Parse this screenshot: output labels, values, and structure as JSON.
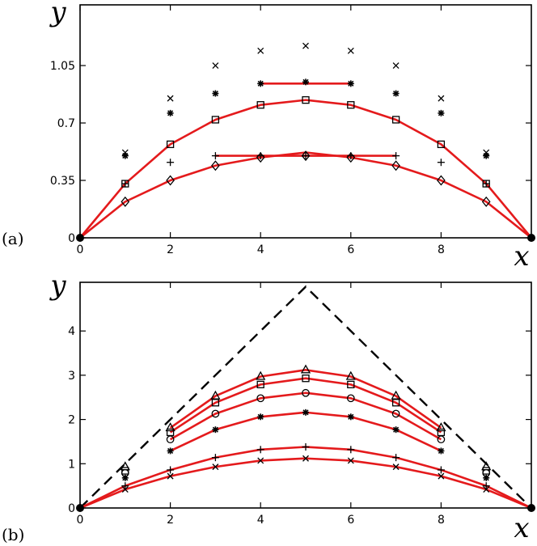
{
  "chart_data": [
    {
      "panel_label": "(a)",
      "type": "line",
      "xlabel": "x",
      "ylabel": "y",
      "xlim": [
        0,
        10
      ],
      "ylim": [
        0,
        1.42
      ],
      "x_ticks": [
        "0",
        "2",
        "4",
        "6",
        "8"
      ],
      "x_tick_values": [
        0,
        2,
        4,
        6,
        8
      ],
      "y_ticks": [
        "0",
        "0.35",
        "0.7",
        "1.05"
      ],
      "y_tick_values": [
        0,
        0.35,
        0.7,
        1.05
      ],
      "grid": false,
      "line_color": "#e41a1c",
      "lines": [
        {
          "x": [
            0,
            1,
            2,
            3,
            4,
            5,
            6,
            7,
            8,
            9,
            10
          ],
          "y": [
            0,
            0.33,
            0.57,
            0.72,
            0.81,
            0.84,
            0.81,
            0.72,
            0.57,
            0.33,
            0
          ]
        },
        {
          "x": [
            0,
            1,
            2,
            3,
            4,
            5,
            6,
            7,
            8,
            9,
            10
          ],
          "y": [
            0,
            0.22,
            0.35,
            0.44,
            0.49,
            0.52,
            0.49,
            0.44,
            0.35,
            0.22,
            0
          ]
        },
        {
          "x": [
            3,
            7
          ],
          "y": [
            0.5,
            0.5
          ]
        },
        {
          "x": [
            4,
            6
          ],
          "y": [
            0.94,
            0.94
          ]
        }
      ],
      "markers": [
        {
          "symbol": "cross",
          "x": [
            1,
            2,
            3,
            4,
            5,
            6,
            7,
            8,
            9
          ],
          "y": [
            0.52,
            0.85,
            1.05,
            1.14,
            1.17,
            1.14,
            1.05,
            0.85,
            0.52
          ]
        },
        {
          "symbol": "asterisk",
          "x": [
            1,
            2,
            3,
            4,
            5,
            6,
            7,
            8,
            9
          ],
          "y": [
            0.5,
            0.76,
            0.88,
            0.94,
            0.95,
            0.94,
            0.88,
            0.76,
            0.5
          ]
        },
        {
          "symbol": "square",
          "x": [
            1,
            2,
            3,
            4,
            5,
            6,
            7,
            8,
            9
          ],
          "y": [
            0.33,
            0.57,
            0.72,
            0.81,
            0.84,
            0.81,
            0.72,
            0.57,
            0.33
          ]
        },
        {
          "symbol": "plus",
          "x": [
            1,
            2,
            3,
            4,
            5,
            6,
            7,
            8,
            9
          ],
          "y": [
            0.33,
            0.46,
            0.5,
            0.5,
            0.5,
            0.5,
            0.5,
            0.46,
            0.33
          ]
        },
        {
          "symbol": "diamond",
          "x": [
            1,
            2,
            3,
            4,
            5,
            6,
            7,
            8,
            9
          ],
          "y": [
            0.22,
            0.35,
            0.44,
            0.49,
            0.5,
            0.49,
            0.44,
            0.35,
            0.22
          ]
        },
        {
          "symbol": "dot",
          "x": [
            0,
            10
          ],
          "y": [
            0,
            0
          ]
        }
      ]
    },
    {
      "panel_label": "(b)",
      "type": "line",
      "xlabel": "x",
      "ylabel": "y",
      "xlim": [
        0,
        10
      ],
      "ylim": [
        0,
        5.1
      ],
      "x_ticks": [
        "0",
        "2",
        "4",
        "6",
        "8"
      ],
      "x_tick_values": [
        0,
        2,
        4,
        6,
        8
      ],
      "y_ticks": [
        "0",
        "1",
        "2",
        "3",
        "4"
      ],
      "y_tick_values": [
        0,
        1,
        2,
        3,
        4
      ],
      "grid": false,
      "line_color": "#e41a1c",
      "dashed_line": {
        "x": [
          0,
          5,
          10
        ],
        "y": [
          0,
          5,
          0
        ]
      },
      "lines": [
        {
          "x": [
            0,
            1,
            2,
            3,
            4,
            5,
            6,
            7,
            8,
            9,
            10
          ],
          "y": [
            0,
            0.42,
            0.72,
            0.93,
            1.07,
            1.12,
            1.07,
            0.93,
            0.72,
            0.42,
            0
          ]
        },
        {
          "x": [
            0,
            1,
            2,
            3,
            4,
            5,
            6,
            7,
            8,
            9,
            10
          ],
          "y": [
            0,
            0.5,
            0.86,
            1.14,
            1.32,
            1.38,
            1.32,
            1.14,
            0.86,
            0.5,
            0
          ]
        },
        {
          "x": [
            2,
            3,
            4,
            5,
            6,
            7,
            8
          ],
          "y": [
            1.29,
            1.77,
            2.06,
            2.16,
            2.06,
            1.77,
            1.29
          ]
        },
        {
          "x": [
            2,
            3,
            4,
            5,
            6,
            7,
            8
          ],
          "y": [
            1.55,
            2.13,
            2.48,
            2.6,
            2.48,
            2.13,
            1.55
          ]
        },
        {
          "x": [
            2,
            3,
            4,
            5,
            6,
            7,
            8
          ],
          "y": [
            1.71,
            2.38,
            2.79,
            2.93,
            2.79,
            2.38,
            1.71
          ]
        },
        {
          "x": [
            2,
            3,
            4,
            5,
            6,
            7,
            8
          ],
          "y": [
            1.81,
            2.53,
            2.97,
            3.12,
            2.97,
            2.53,
            1.81
          ]
        }
      ],
      "markers": [
        {
          "symbol": "cross",
          "x": [
            1,
            2,
            3,
            4,
            5,
            6,
            7,
            8,
            9
          ],
          "y": [
            0.42,
            0.72,
            0.93,
            1.07,
            1.12,
            1.07,
            0.93,
            0.72,
            0.42
          ]
        },
        {
          "symbol": "plus",
          "x": [
            1,
            2,
            3,
            4,
            5,
            6,
            7,
            8,
            9
          ],
          "y": [
            0.5,
            0.86,
            1.14,
            1.32,
            1.38,
            1.32,
            1.14,
            0.86,
            0.5
          ]
        },
        {
          "symbol": "asterisk",
          "x": [
            1,
            2,
            3,
            4,
            5,
            6,
            7,
            8,
            9
          ],
          "y": [
            0.68,
            1.29,
            1.77,
            2.06,
            2.16,
            2.06,
            1.77,
            1.29,
            0.68
          ]
        },
        {
          "symbol": "circle",
          "x": [
            1,
            2,
            3,
            4,
            5,
            6,
            7,
            8,
            9
          ],
          "y": [
            0.79,
            1.55,
            2.13,
            2.48,
            2.6,
            2.48,
            2.13,
            1.55,
            0.79
          ]
        },
        {
          "symbol": "square",
          "x": [
            1,
            2,
            3,
            4,
            5,
            6,
            7,
            8,
            9
          ],
          "y": [
            0.84,
            1.71,
            2.38,
            2.79,
            2.93,
            2.79,
            2.38,
            1.71,
            0.84
          ]
        },
        {
          "symbol": "triangle",
          "x": [
            1,
            2,
            3,
            4,
            5,
            6,
            7,
            8,
            9
          ],
          "y": [
            0.93,
            1.81,
            2.53,
            2.97,
            3.12,
            2.97,
            2.53,
            1.81,
            0.93
          ]
        },
        {
          "symbol": "dot",
          "x": [
            0,
            10
          ],
          "y": [
            0,
            0
          ]
        }
      ]
    }
  ]
}
